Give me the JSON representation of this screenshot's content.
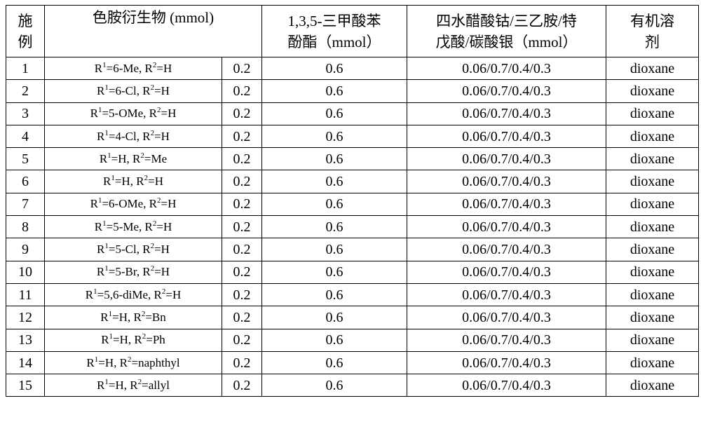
{
  "headers": {
    "example_line1": "施",
    "example_line2": "例",
    "derivative": "色胺衍生物 (mmol)",
    "ester_line1": "1,3,5-三甲酸苯",
    "ester_line2": "酚酯（mmol）",
    "reagents_line1": "四水醋酸钴/三乙胺/特",
    "reagents_line2": "戊酸/碳酸银（mmol）",
    "solvent_line1": "有机溶",
    "solvent_line2": "剂"
  },
  "rows": [
    {
      "no": "1",
      "r1": "6-Me",
      "r2": "H",
      "amount": "0.2",
      "ester": "0.6",
      "reagents": "0.06/0.7/0.4/0.3",
      "solvent": "dioxane"
    },
    {
      "no": "2",
      "r1": "6-Cl",
      "r2": "H",
      "amount": "0.2",
      "ester": "0.6",
      "reagents": "0.06/0.7/0.4/0.3",
      "solvent": "dioxane"
    },
    {
      "no": "3",
      "r1": "5-OMe",
      "r2": "H",
      "amount": "0.2",
      "ester": "0.6",
      "reagents": "0.06/0.7/0.4/0.3",
      "solvent": "dioxane"
    },
    {
      "no": "4",
      "r1": "4-Cl",
      "r2": "H",
      "amount": "0.2",
      "ester": "0.6",
      "reagents": "0.06/0.7/0.4/0.3",
      "solvent": "dioxane"
    },
    {
      "no": "5",
      "r1": "H",
      "r2": "Me",
      "amount": "0.2",
      "ester": "0.6",
      "reagents": "0.06/0.7/0.4/0.3",
      "solvent": "dioxane"
    },
    {
      "no": "6",
      "r1": "H",
      "r2": "H",
      "amount": "0.2",
      "ester": "0.6",
      "reagents": "0.06/0.7/0.4/0.3",
      "solvent": "dioxane"
    },
    {
      "no": "7",
      "r1": "6-OMe",
      "r2": "H",
      "amount": "0.2",
      "ester": "0.6",
      "reagents": "0.06/0.7/0.4/0.3",
      "solvent": "dioxane"
    },
    {
      "no": "8",
      "r1": "5-Me",
      "r2": "H",
      "amount": "0.2",
      "ester": "0.6",
      "reagents": "0.06/0.7/0.4/0.3",
      "solvent": "dioxane"
    },
    {
      "no": "9",
      "r1": "5-Cl",
      "r2": "H",
      "amount": "0.2",
      "ester": "0.6",
      "reagents": "0.06/0.7/0.4/0.3",
      "solvent": "dioxane"
    },
    {
      "no": "10",
      "r1": "5-Br",
      "r2": "H",
      "amount": "0.2",
      "ester": "0.6",
      "reagents": "0.06/0.7/0.4/0.3",
      "solvent": "dioxane"
    },
    {
      "no": "11",
      "r1": "5,6-diMe",
      "r2": "H",
      "amount": "0.2",
      "ester": "0.6",
      "reagents": "0.06/0.7/0.4/0.3",
      "solvent": "dioxane"
    },
    {
      "no": "12",
      "r1": "H",
      "r2": "Bn",
      "amount": "0.2",
      "ester": "0.6",
      "reagents": "0.06/0.7/0.4/0.3",
      "solvent": "dioxane"
    },
    {
      "no": "13",
      "r1": "H",
      "r2": "Ph",
      "amount": "0.2",
      "ester": "0.6",
      "reagents": "0.06/0.7/0.4/0.3",
      "solvent": "dioxane"
    },
    {
      "no": "14",
      "r1": "H",
      "r2": "naphthyl",
      "amount": "0.2",
      "ester": "0.6",
      "reagents": "0.06/0.7/0.4/0.3",
      "solvent": "dioxane"
    },
    {
      "no": "15",
      "r1": "H",
      "r2": "allyl",
      "amount": "0.2",
      "ester": "0.6",
      "reagents": "0.06/0.7/0.4/0.3",
      "solvent": "dioxane"
    }
  ]
}
